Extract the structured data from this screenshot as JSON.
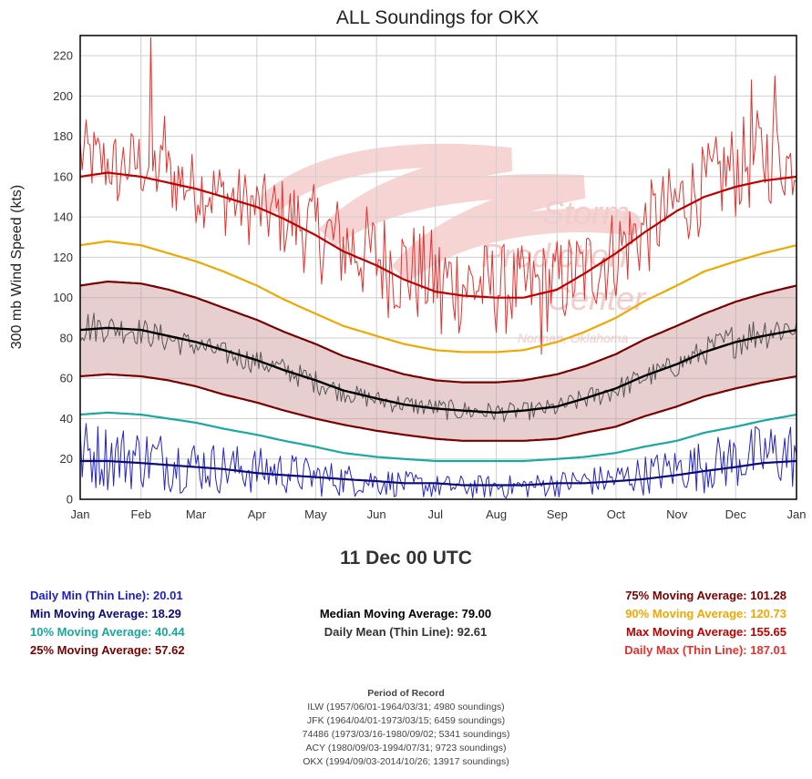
{
  "chart_data": {
    "type": "line",
    "title": "ALL Soundings for OKX",
    "ylabel": "300 mb Wind Speed (kts)",
    "xlabel": "",
    "ylim": [
      0,
      230
    ],
    "yticks": [
      0,
      20,
      40,
      60,
      80,
      100,
      120,
      140,
      160,
      180,
      200,
      220
    ],
    "month_labels": [
      "Jan",
      "Feb",
      "Mar",
      "Apr",
      "May",
      "Jun",
      "Jul",
      "Aug",
      "Sep",
      "Oct",
      "Nov",
      "Dec",
      "Jan"
    ],
    "grid": true,
    "x_day_start": 1,
    "x_day_end": 366,
    "legend": "below",
    "colors": {
      "daily_min": "#2424c8",
      "min_ma": "#0a0a7a",
      "p10_ma": "#17a8a0",
      "p25_ma": "#7a0000",
      "median_ma": "#000000",
      "daily_mean": "#555555",
      "p75_ma": "#7a0000",
      "p90_ma": "#f0a800",
      "max_ma": "#c00000",
      "daily_max": "#e8302c",
      "band": "#c99494"
    },
    "smooth_series": {
      "day": [
        1,
        15,
        32,
        46,
        60,
        74,
        91,
        105,
        121,
        135,
        152,
        166,
        182,
        196,
        213,
        227,
        244,
        258,
        274,
        288,
        305,
        319,
        335,
        349,
        366
      ],
      "max_ma": [
        160,
        162,
        160,
        157,
        154,
        150,
        145,
        139,
        131,
        123,
        116,
        109,
        103,
        101,
        100,
        100,
        104,
        112,
        122,
        132,
        143,
        150,
        155,
        158,
        160
      ],
      "p90_ma": [
        126,
        128,
        126,
        122,
        118,
        113,
        106,
        99,
        92,
        86,
        81,
        77,
        74,
        73,
        73,
        74,
        78,
        83,
        90,
        98,
        106,
        113,
        118,
        122,
        126
      ],
      "p75_ma": [
        106,
        108,
        107,
        104,
        100,
        95,
        89,
        83,
        77,
        71,
        66,
        62,
        59,
        58,
        58,
        59,
        62,
        66,
        72,
        79,
        86,
        92,
        98,
        102,
        106
      ],
      "median_ma": [
        84,
        85,
        84,
        81,
        78,
        74,
        69,
        64,
        59,
        54,
        50,
        47,
        45,
        44,
        43,
        44,
        46,
        50,
        55,
        61,
        67,
        73,
        78,
        81,
        84
      ],
      "p25_ma": [
        61,
        62,
        61,
        59,
        56,
        52,
        48,
        44,
        40,
        37,
        34,
        32,
        30,
        29,
        29,
        29,
        30,
        33,
        36,
        41,
        46,
        51,
        55,
        58,
        61
      ],
      "p10_ma": [
        42,
        43,
        42,
        40,
        38,
        35,
        32,
        29,
        26,
        23,
        21,
        20,
        19,
        19,
        19,
        19,
        20,
        21,
        23,
        26,
        29,
        33,
        36,
        39,
        42
      ],
      "min_ma": [
        19,
        19,
        18,
        17,
        16,
        15,
        13,
        12,
        11,
        10,
        9,
        8,
        8,
        7,
        7,
        7,
        8,
        8,
        9,
        10,
        12,
        14,
        16,
        18,
        19
      ]
    },
    "daily_envelope": {
      "description_free": true,
      "day": [
        1,
        15,
        32,
        46,
        60,
        74,
        91,
        105,
        121,
        135,
        152,
        166,
        182,
        196,
        213,
        227,
        244,
        258,
        274,
        288,
        305,
        319,
        335,
        349,
        366
      ],
      "max_hi": [
        190,
        182,
        185,
        178,
        172,
        168,
        162,
        160,
        156,
        150,
        145,
        140,
        134,
        130,
        128,
        126,
        130,
        136,
        146,
        156,
        168,
        176,
        188,
        195,
        180
      ],
      "max_lo": [
        150,
        148,
        146,
        140,
        136,
        130,
        124,
        118,
        108,
        100,
        92,
        86,
        82,
        80,
        80,
        80,
        82,
        88,
        98,
        108,
        122,
        132,
        138,
        144,
        148
      ],
      "mean_hi": [
        95,
        92,
        90,
        86,
        82,
        78,
        74,
        70,
        64,
        58,
        54,
        52,
        50,
        49,
        48,
        48,
        50,
        55,
        60,
        66,
        72,
        80,
        88,
        92,
        95
      ],
      "mean_lo": [
        76,
        78,
        76,
        72,
        70,
        66,
        62,
        58,
        52,
        48,
        44,
        42,
        40,
        38,
        38,
        39,
        40,
        44,
        48,
        54,
        60,
        66,
        70,
        74,
        76
      ],
      "min_hi": [
        40,
        38,
        36,
        34,
        30,
        28,
        26,
        24,
        20,
        18,
        16,
        14,
        12,
        12,
        12,
        12,
        14,
        16,
        18,
        22,
        26,
        30,
        34,
        38,
        40
      ],
      "min_lo": [
        4,
        4,
        4,
        3,
        3,
        2,
        2,
        2,
        1,
        1,
        1,
        1,
        0,
        0,
        0,
        0,
        1,
        1,
        1,
        2,
        3,
        3,
        4,
        4,
        4
      ]
    },
    "spikes": [
      {
        "day": 20,
        "value": 148
      },
      {
        "day": 37,
        "value": 229
      },
      {
        "day": 44,
        "value": 190
      },
      {
        "day": 185,
        "value": 82
      },
      {
        "day": 236,
        "value": 72
      },
      {
        "day": 343,
        "value": 208
      },
      {
        "day": 355,
        "value": 210
      }
    ]
  },
  "cursor_label": "11 Dec 00 UTC",
  "stats_left": [
    {
      "label": "Daily Min (Thin Line): 20.01",
      "color": "#1e1ec8"
    },
    {
      "label": "Min Moving Average: 18.29",
      "color": "#0a0a7a"
    },
    {
      "label": "10% Moving Average: 40.44",
      "color": "#17a8a0"
    },
    {
      "label": "25% Moving Average: 57.62",
      "color": "#7a0000"
    }
  ],
  "stats_center": [
    {
      "label": "Median Moving Average: 79.00",
      "color": "#000000"
    },
    {
      "label": "Daily Mean (Thin Line): 92.61",
      "color": "#333333"
    }
  ],
  "stats_right": [
    {
      "label": "75% Moving Average: 101.28",
      "color": "#7a0000"
    },
    {
      "label": "90% Moving Average: 120.73",
      "color": "#f0a800"
    },
    {
      "label": "Max Moving Average: 155.65",
      "color": "#c00000"
    },
    {
      "label": "Daily Max (Thin Line): 187.01",
      "color": "#e8302c"
    }
  ],
  "watermark": {
    "line1": "Storm",
    "line2": "Prediction",
    "line3": "Center",
    "line4": "Norman, Oklahoma"
  },
  "period_of_record": {
    "header": "Period of Record",
    "lines": [
      "ILW (1957/06/01-1964/03/31; 4980 soundings)",
      "JFK (1964/04/01-1973/03/15; 6459 soundings)",
      "74486 (1973/03/16-1980/09/02; 5341 soundings)",
      "ACY (1980/09/03-1994/07/31; 9723 soundings)",
      "OKX (1994/09/03-2014/10/26; 13917 soundings)"
    ]
  }
}
